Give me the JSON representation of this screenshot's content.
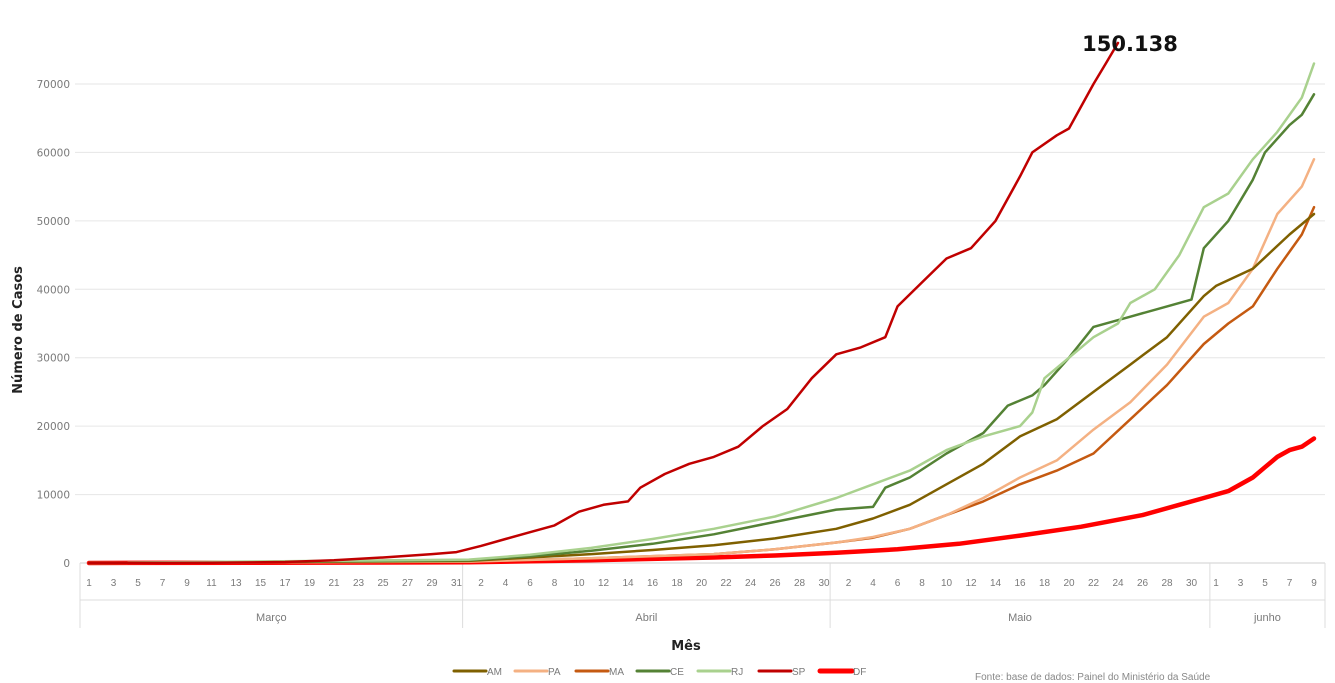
{
  "chart_data": {
    "type": "line",
    "title": "",
    "xlabel": "Mês",
    "ylabel": "Número de Casos",
    "ylim": [
      0,
      75000
    ],
    "y_ticks": [
      "0",
      "10000",
      "20000",
      "30000",
      "40000",
      "50000",
      "60000",
      "70000"
    ],
    "y_tick_values": [
      0,
      10000,
      20000,
      30000,
      40000,
      50000,
      60000,
      70000
    ],
    "grid": "horizontal",
    "legend": "bottom",
    "months": [
      {
        "label": "Março",
        "start": 0,
        "end": 30
      },
      {
        "label": "Abril",
        "start": 31,
        "end": 60
      },
      {
        "label": "Maio",
        "start": 61,
        "end": 91
      },
      {
        "label": "junho",
        "start": 92,
        "end": 100
      }
    ],
    "x_tick_labels": [
      "1",
      "3",
      "5",
      "7",
      "9",
      "11",
      "13",
      "15",
      "17",
      "19",
      "21",
      "23",
      "25",
      "27",
      "29",
      "31",
      "2",
      "4",
      "6",
      "8",
      "10",
      "12",
      "14",
      "16",
      "18",
      "20",
      "22",
      "24",
      "26",
      "28",
      "30",
      "2",
      "4",
      "6",
      "8",
      "10",
      "12",
      "14",
      "16",
      "18",
      "20",
      "22",
      "24",
      "26",
      "28",
      "30",
      "1",
      "3",
      "5",
      "7",
      "9"
    ],
    "x_tick_index": [
      0,
      2,
      4,
      6,
      8,
      10,
      12,
      14,
      16,
      18,
      20,
      22,
      24,
      26,
      28,
      30,
      32,
      34,
      36,
      38,
      40,
      42,
      44,
      46,
      48,
      50,
      52,
      54,
      56,
      58,
      60,
      62,
      64,
      66,
      68,
      70,
      72,
      74,
      76,
      78,
      80,
      82,
      84,
      86,
      88,
      90,
      92,
      94,
      96,
      98,
      100
    ],
    "series": [
      {
        "name": "AM",
        "color": "#7f6000",
        "width": 2.5,
        "points": [
          [
            0,
            0
          ],
          [
            31,
            300
          ],
          [
            36,
            800
          ],
          [
            41,
            1300
          ],
          [
            46,
            1900
          ],
          [
            51,
            2600
          ],
          [
            56,
            3600
          ],
          [
            61,
            5000
          ],
          [
            64,
            6500
          ],
          [
            67,
            8500
          ],
          [
            70,
            11500
          ],
          [
            73,
            14500
          ],
          [
            76,
            18500
          ],
          [
            79,
            21000
          ],
          [
            82,
            25000
          ],
          [
            85,
            29000
          ],
          [
            88,
            33000
          ],
          [
            91,
            39000
          ],
          [
            92,
            40500
          ],
          [
            95,
            43000
          ],
          [
            98,
            48000
          ],
          [
            100,
            51000
          ]
        ]
      },
      {
        "name": "PA",
        "color": "#f4b183",
        "width": 2.5,
        "points": [
          [
            0,
            0
          ],
          [
            31,
            200
          ],
          [
            41,
            700
          ],
          [
            51,
            1300
          ],
          [
            56,
            2000
          ],
          [
            61,
            3000
          ],
          [
            64,
            3800
          ],
          [
            67,
            5000
          ],
          [
            70,
            7000
          ],
          [
            73,
            9500
          ],
          [
            76,
            12500
          ],
          [
            79,
            15000
          ],
          [
            82,
            19500
          ],
          [
            85,
            23500
          ],
          [
            88,
            29000
          ],
          [
            91,
            36000
          ],
          [
            93,
            38000
          ],
          [
            95,
            43000
          ],
          [
            97,
            51000
          ],
          [
            99,
            55000
          ],
          [
            100,
            59000
          ]
        ]
      },
      {
        "name": "MA",
        "color": "#c55a11",
        "width": 2.5,
        "points": [
          [
            0,
            0
          ],
          [
            31,
            200
          ],
          [
            41,
            700
          ],
          [
            51,
            1300
          ],
          [
            56,
            2000
          ],
          [
            61,
            3000
          ],
          [
            64,
            3700
          ],
          [
            67,
            5000
          ],
          [
            70,
            7000
          ],
          [
            73,
            9000
          ],
          [
            76,
            11500
          ],
          [
            79,
            13500
          ],
          [
            82,
            16000
          ],
          [
            85,
            21000
          ],
          [
            88,
            26000
          ],
          [
            91,
            32000
          ],
          [
            93,
            35000
          ],
          [
            95,
            37500
          ],
          [
            97,
            43000
          ],
          [
            99,
            48000
          ],
          [
            100,
            52000
          ]
        ]
      },
      {
        "name": "CE",
        "color": "#548235",
        "width": 2.5,
        "points": [
          [
            0,
            0
          ],
          [
            31,
            400
          ],
          [
            36,
            1000
          ],
          [
            41,
            1800
          ],
          [
            46,
            2800
          ],
          [
            51,
            4200
          ],
          [
            56,
            6000
          ],
          [
            61,
            7800
          ],
          [
            64,
            8200
          ],
          [
            65,
            11000
          ],
          [
            67,
            12500
          ],
          [
            70,
            16000
          ],
          [
            73,
            19000
          ],
          [
            75,
            23000
          ],
          [
            77,
            24500
          ],
          [
            78,
            26000
          ],
          [
            80,
            30000
          ],
          [
            82,
            34500
          ],
          [
            85,
            36000
          ],
          [
            88,
            37500
          ],
          [
            90,
            38500
          ],
          [
            91,
            46000
          ],
          [
            93,
            50000
          ],
          [
            95,
            56000
          ],
          [
            96,
            60000
          ],
          [
            98,
            64000
          ],
          [
            99,
            65500
          ],
          [
            100,
            68500
          ]
        ]
      },
      {
        "name": "RJ",
        "color": "#a9d18e",
        "width": 2.5,
        "points": [
          [
            0,
            0
          ],
          [
            31,
            500
          ],
          [
            36,
            1200
          ],
          [
            41,
            2200
          ],
          [
            46,
            3500
          ],
          [
            51,
            5000
          ],
          [
            56,
            6800
          ],
          [
            61,
            9500
          ],
          [
            64,
            11500
          ],
          [
            67,
            13500
          ],
          [
            70,
            16500
          ],
          [
            73,
            18500
          ],
          [
            76,
            20000
          ],
          [
            77,
            22000
          ],
          [
            78,
            27000
          ],
          [
            80,
            30000
          ],
          [
            82,
            33000
          ],
          [
            84,
            35000
          ],
          [
            85,
            38000
          ],
          [
            87,
            40000
          ],
          [
            89,
            45000
          ],
          [
            91,
            52000
          ],
          [
            93,
            54000
          ],
          [
            95,
            59000
          ],
          [
            97,
            63000
          ],
          [
            99,
            68000
          ],
          [
            100,
            73000
          ]
        ]
      },
      {
        "name": "SP",
        "color": "#c00000",
        "width": 2.5,
        "points": [
          [
            0,
            0
          ],
          [
            10,
            30
          ],
          [
            16,
            150
          ],
          [
            20,
            400
          ],
          [
            24,
            800
          ],
          [
            28,
            1300
          ],
          [
            30,
            1600
          ],
          [
            32,
            2500
          ],
          [
            34,
            3500
          ],
          [
            36,
            4500
          ],
          [
            38,
            5500
          ],
          [
            40,
            7500
          ],
          [
            42,
            8500
          ],
          [
            44,
            9000
          ],
          [
            45,
            11000
          ],
          [
            47,
            13000
          ],
          [
            49,
            14500
          ],
          [
            51,
            15500
          ],
          [
            53,
            17000
          ],
          [
            55,
            20000
          ],
          [
            57,
            22500
          ],
          [
            59,
            27000
          ],
          [
            61,
            30500
          ],
          [
            63,
            31500
          ],
          [
            65,
            33000
          ],
          [
            66,
            37500
          ],
          [
            68,
            41000
          ],
          [
            70,
            44500
          ],
          [
            72,
            46000
          ],
          [
            74,
            50000
          ],
          [
            76,
            56500
          ],
          [
            77,
            60000
          ],
          [
            79,
            62500
          ],
          [
            80,
            63500
          ],
          [
            82,
            70000
          ],
          [
            83,
            73000
          ],
          [
            84,
            76000
          ]
        ]
      },
      {
        "name": "DF",
        "color": "#ff0000",
        "width": 4.5,
        "points": [
          [
            0,
            0
          ],
          [
            31,
            100
          ],
          [
            41,
            400
          ],
          [
            51,
            800
          ],
          [
            56,
            1100
          ],
          [
            61,
            1500
          ],
          [
            66,
            2000
          ],
          [
            71,
            2800
          ],
          [
            76,
            4000
          ],
          [
            81,
            5300
          ],
          [
            86,
            7000
          ],
          [
            89,
            8500
          ],
          [
            91,
            9500
          ],
          [
            93,
            10500
          ],
          [
            95,
            12500
          ],
          [
            96,
            14000
          ],
          [
            97,
            15500
          ],
          [
            98,
            16500
          ],
          [
            99,
            17000
          ],
          [
            100,
            18200
          ]
        ]
      }
    ],
    "annotations": [
      {
        "text": "150.138",
        "x": 84,
        "y": 78000,
        "series": "SP"
      }
    ]
  },
  "source_text": "Fonte: base de dados: Painel do Ministério da Saúde"
}
